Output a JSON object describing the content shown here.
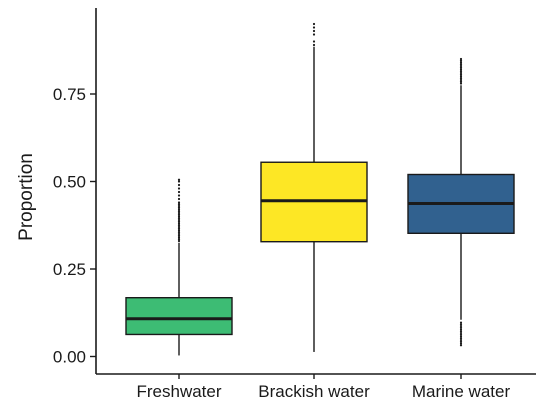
{
  "chart_data": {
    "type": "boxplot",
    "xlabel": "",
    "ylabel": "Proportion",
    "ylim": [
      -0.05,
      0.99
    ],
    "yticks": [
      0.0,
      0.25,
      0.5,
      0.75
    ],
    "ytick_labels": [
      "0.00",
      "0.25",
      "0.50",
      "0.75"
    ],
    "grid": false,
    "legend": "none",
    "categories": [
      "Freshwater",
      "Brackish water",
      "Marine water"
    ],
    "boxes": [
      {
        "category": "Freshwater",
        "color": "#3dbc74",
        "min": 0.003,
        "q1": 0.063,
        "median": 0.108,
        "q3": 0.168,
        "max": 0.325,
        "outliers": [
          0.33,
          0.335,
          0.34,
          0.345,
          0.35,
          0.355,
          0.36,
          0.365,
          0.37,
          0.375,
          0.38,
          0.385,
          0.39,
          0.395,
          0.4,
          0.405,
          0.41,
          0.415,
          0.42,
          0.425,
          0.43,
          0.435,
          0.44,
          0.45,
          0.46,
          0.47,
          0.48,
          0.49,
          0.5,
          0.505
        ]
      },
      {
        "category": "Brackish water",
        "color": "#fde725",
        "min": 0.013,
        "q1": 0.328,
        "median": 0.445,
        "q3": 0.555,
        "max": 0.885,
        "outliers": [
          0.89,
          0.9,
          0.92,
          0.93,
          0.94,
          0.95
        ]
      },
      {
        "category": "Marine water",
        "color": "#31618f",
        "min": 0.105,
        "q1": 0.352,
        "median": 0.437,
        "q3": 0.52,
        "max": 0.775,
        "outliers": [
          0.032,
          0.037,
          0.042,
          0.047,
          0.052,
          0.057,
          0.062,
          0.067,
          0.072,
          0.077,
          0.082,
          0.087,
          0.092,
          0.097,
          0.78,
          0.785,
          0.79,
          0.795,
          0.8,
          0.805,
          0.81,
          0.815,
          0.82,
          0.825,
          0.83,
          0.835,
          0.84,
          0.845,
          0.85
        ]
      }
    ]
  }
}
